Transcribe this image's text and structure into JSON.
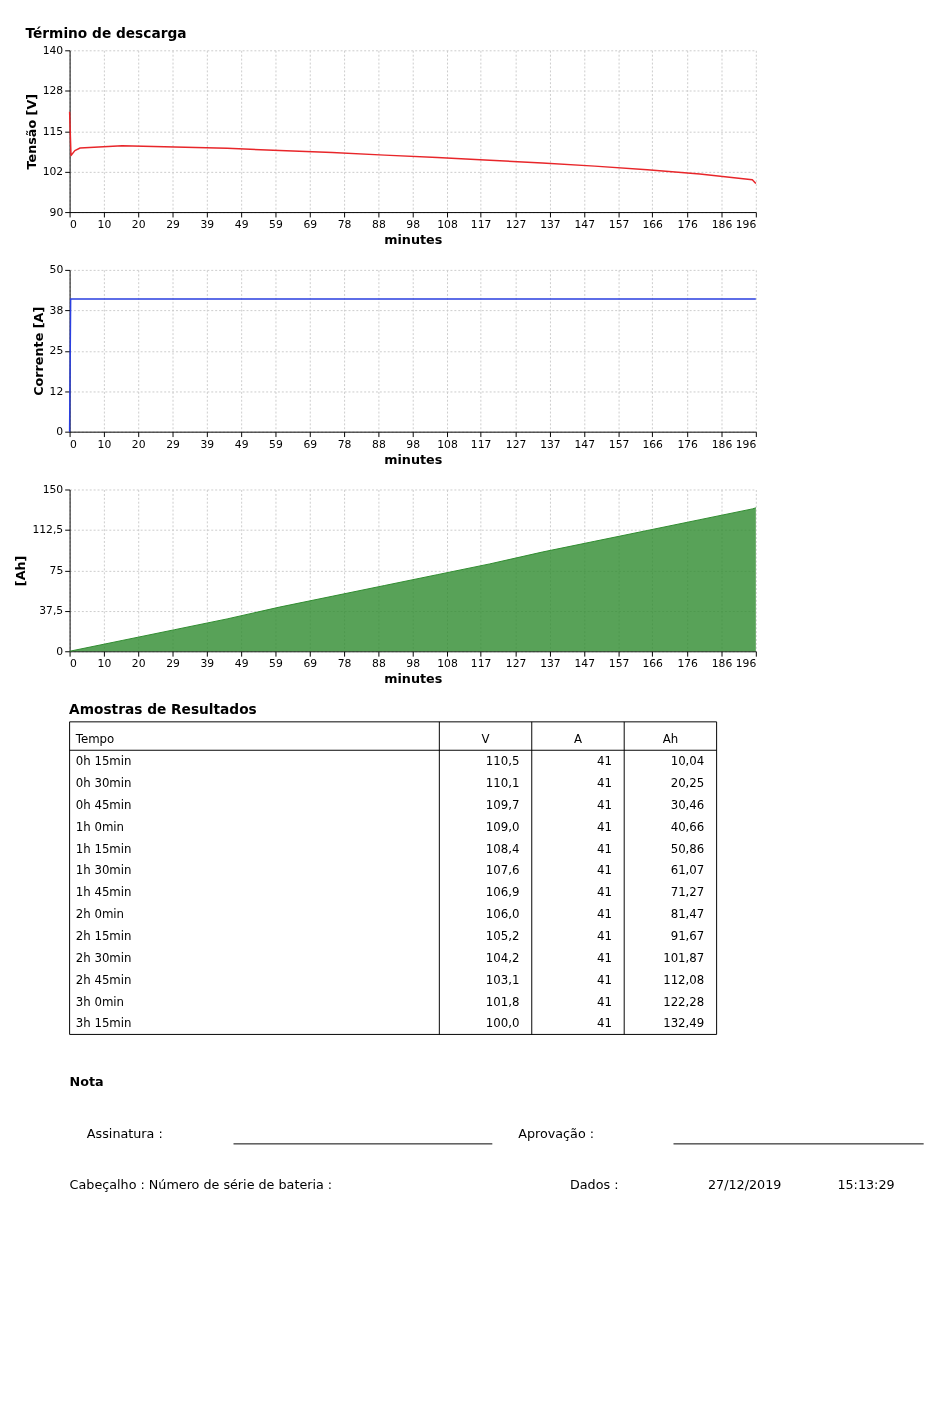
{
  "chart_data": [
    {
      "type": "line",
      "title": "Término de descarga",
      "xlabel": "minutes",
      "ylabel": "Tensão [V]",
      "x": [
        0,
        0.4,
        1.5,
        3,
        15,
        30,
        45,
        60,
        75,
        90,
        105,
        120,
        135,
        150,
        165,
        180,
        195,
        196
      ],
      "series": [
        {
          "color": "#e8262a",
          "values": [
            121,
            107.5,
            109,
            109.8,
            110.5,
            110.1,
            109.7,
            109.0,
            108.4,
            107.6,
            106.9,
            106.0,
            105.2,
            104.2,
            103.1,
            101.8,
            100.0,
            98.8
          ]
        }
      ],
      "xlim": [
        0,
        196
      ],
      "xticks": [
        0,
        {
          "value": 9.8,
          "label": "10"
        },
        {
          "value": 19.6,
          "label": "20"
        },
        {
          "value": 29.4,
          "label": "29"
        },
        {
          "value": 39.2,
          "label": "39"
        },
        49,
        {
          "value": 58.8,
          "label": "59"
        },
        {
          "value": 68.6,
          "label": "69"
        },
        {
          "value": 78.4,
          "label": "78"
        },
        {
          "value": 88.2,
          "label": "88"
        },
        98,
        {
          "value": 107.8,
          "label": "108"
        },
        {
          "value": 117.4,
          "label": "117"
        },
        {
          "value": 127.4,
          "label": "127"
        },
        {
          "value": 137.2,
          "label": "137"
        },
        147,
        {
          "value": 156.8,
          "label": "157"
        },
        {
          "value": 166.4,
          "label": "166"
        },
        {
          "value": 176.4,
          "label": "176"
        },
        {
          "value": 186.2,
          "label": "186"
        },
        196
      ],
      "ylim": [
        90,
        140
      ],
      "yticks": [
        90,
        {
          "value": 102.5,
          "label": "102"
        },
        115,
        {
          "value": 127.5,
          "label": "128"
        },
        140
      ],
      "grid": true
    },
    {
      "type": "line",
      "xlabel": "minutes",
      "ylabel": "Corrente [A]",
      "x": [
        0,
        0.3,
        196
      ],
      "series": [
        {
          "color": "#2a3fe0",
          "values": [
            0,
            41,
            41
          ]
        }
      ],
      "xlim": [
        0,
        196
      ],
      "xticks": [
        0,
        {
          "value": 9.8,
          "label": "10"
        },
        {
          "value": 19.6,
          "label": "20"
        },
        {
          "value": 29.4,
          "label": "29"
        },
        {
          "value": 39.2,
          "label": "39"
        },
        49,
        {
          "value": 58.8,
          "label": "59"
        },
        {
          "value": 68.6,
          "label": "69"
        },
        {
          "value": 78.4,
          "label": "78"
        },
        {
          "value": 88.2,
          "label": "88"
        },
        98,
        {
          "value": 107.8,
          "label": "108"
        },
        {
          "value": 117.4,
          "label": "117"
        },
        {
          "value": 127.4,
          "label": "127"
        },
        {
          "value": 137.2,
          "label": "137"
        },
        147,
        {
          "value": 156.8,
          "label": "157"
        },
        {
          "value": 166.4,
          "label": "166"
        },
        {
          "value": 176.4,
          "label": "176"
        },
        {
          "value": 186.2,
          "label": "186"
        },
        196
      ],
      "ylim": [
        0,
        50
      ],
      "yticks": [
        0,
        {
          "value": 12.5,
          "label": "12"
        },
        25,
        {
          "value": 37.5,
          "label": "38"
        },
        50
      ],
      "grid": true
    },
    {
      "type": "area",
      "xlabel": "minutes",
      "ylabel": "[Ah]",
      "x": [
        0,
        15,
        30,
        45,
        60,
        75,
        90,
        105,
        120,
        135,
        150,
        165,
        180,
        195,
        196
      ],
      "series": [
        {
          "color": "#2e8b2e",
          "values": [
            0,
            10,
            20,
            30,
            41,
            51,
            61,
            71,
            81,
            92,
            102,
            112,
            122,
            132,
            133
          ]
        }
      ],
      "xlim": [
        0,
        196
      ],
      "xticks": [
        0,
        {
          "value": 9.8,
          "label": "10"
        },
        {
          "value": 19.6,
          "label": "20"
        },
        {
          "value": 29.4,
          "label": "29"
        },
        {
          "value": 39.2,
          "label": "39"
        },
        49,
        {
          "value": 58.8,
          "label": "59"
        },
        {
          "value": 68.6,
          "label": "69"
        },
        {
          "value": 78.4,
          "label": "78"
        },
        {
          "value": 88.2,
          "label": "88"
        },
        98,
        {
          "value": 107.8,
          "label": "108"
        },
        {
          "value": 117.4,
          "label": "117"
        },
        {
          "value": 127.4,
          "label": "127"
        },
        {
          "value": 137.2,
          "label": "137"
        },
        147,
        {
          "value": 156.8,
          "label": "157"
        },
        {
          "value": 166.4,
          "label": "166"
        },
        {
          "value": 176.4,
          "label": "176"
        },
        {
          "value": 186.2,
          "label": "186"
        },
        196
      ],
      "ylim": [
        0,
        150
      ],
      "yticks": [
        0,
        {
          "value": 37.5,
          "label": "37,5"
        },
        75,
        {
          "value": 112.5,
          "label": "112,5"
        },
        150
      ],
      "grid": true
    },
    {
      "type": "other",
      "title": "Amostras de Resultados",
      "ylabel": "Tempo",
      "categories": [
        "0h 15min",
        "0h 30min",
        "0h 45min",
        "1h 0min",
        "1h 15min",
        "1h 30min",
        "1h 45min",
        "2h 0min",
        "2h 15min",
        "2h 30min",
        "2h 45min",
        "3h 0min",
        "3h 15min"
      ],
      "series": [
        {
          "name": "V",
          "values": [
            110.5,
            110.1,
            109.7,
            109.0,
            108.4,
            107.6,
            106.9,
            106.0,
            105.2,
            104.2,
            103.1,
            101.8,
            100.0
          ],
          "value_labels": [
            "110,5",
            "110,1",
            "109,7",
            "109,0",
            "108,4",
            "107,6",
            "106,9",
            "106,0",
            "105,2",
            "104,2",
            "103,1",
            "101,8",
            "100,0"
          ]
        },
        {
          "name": "A",
          "values": [
            41,
            41,
            41,
            41,
            41,
            41,
            41,
            41,
            41,
            41,
            41,
            41,
            41
          ],
          "value_labels": [
            "41",
            "41",
            "41",
            "41",
            "41",
            "41",
            "41",
            "41",
            "41",
            "41",
            "41",
            "41",
            "41"
          ]
        },
        {
          "name": "Ah",
          "values": [
            10.04,
            20.25,
            30.46,
            40.66,
            50.86,
            61.07,
            71.27,
            81.47,
            91.67,
            101.87,
            112.08,
            122.28,
            132.49
          ],
          "value_labels": [
            "10,04",
            "20,25",
            "30,46",
            "40,66",
            "50,86",
            "61,07",
            "71,27",
            "81,47",
            "91,67",
            "101,87",
            "112,08",
            "122,28",
            "132,49"
          ]
        }
      ],
      "annotations": [
        "Nota",
        "Assinatura :",
        "Aprovação :",
        "Cabeçalho :  Número de série de bateria :",
        "Dados :",
        "27/12/2019",
        "15:13:29"
      ]
    }
  ]
}
